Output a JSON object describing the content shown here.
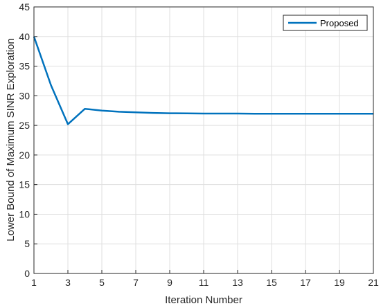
{
  "chart_data": {
    "type": "line",
    "title": "",
    "xlabel": "Iteration Number",
    "ylabel": "Lower Bound of Maximum SINR Exploration",
    "xlim": [
      1,
      21
    ],
    "ylim": [
      0,
      45
    ],
    "xticks": [
      1,
      3,
      5,
      7,
      9,
      11,
      13,
      15,
      17,
      19,
      21
    ],
    "yticks": [
      0,
      5,
      10,
      15,
      20,
      25,
      30,
      35,
      40,
      45
    ],
    "grid": true,
    "legend_position": "top-right",
    "series": [
      {
        "name": "Proposed",
        "color": "#0072BD",
        "x": [
          1,
          2,
          3,
          4,
          5,
          6,
          7,
          8,
          9,
          10,
          11,
          12,
          13,
          14,
          15,
          16,
          17,
          18,
          19,
          20,
          21
        ],
        "y": [
          40.0,
          31.8,
          25.2,
          27.8,
          27.5,
          27.3,
          27.2,
          27.1,
          27.05,
          27.02,
          27.0,
          27.0,
          27.0,
          26.98,
          26.98,
          26.98,
          26.98,
          26.98,
          26.98,
          26.98,
          26.98
        ]
      }
    ]
  }
}
